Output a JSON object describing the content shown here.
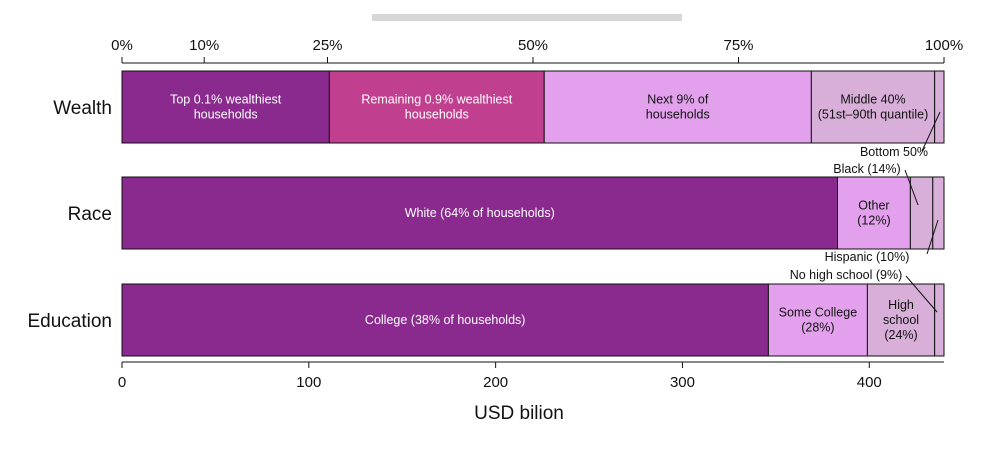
{
  "chart_data": {
    "type": "bar",
    "orientation": "horizontal",
    "stacked": true,
    "title": "",
    "xlabel": "USD bilion",
    "xlim": [
      0,
      440
    ],
    "bottom_ticks": [
      "0",
      "100",
      "200",
      "300",
      "400"
    ],
    "top_ticks": [
      "0%",
      "10%",
      "25%",
      "50%",
      "75%",
      "100%"
    ],
    "categories": [
      "Wealth",
      "Race",
      "Education"
    ],
    "rows": [
      {
        "category": "Wealth",
        "segments": [
          {
            "label": [
              "Top 0.1% wealthiest",
              "households"
            ],
            "value": 111,
            "color": "#8a298e",
            "text_color": "#ffffff"
          },
          {
            "label": [
              "Remaining 0.9% wealthiest",
              "households"
            ],
            "value": 115,
            "color": "#c0408f",
            "text_color": "#ffffff"
          },
          {
            "label": [
              "Next 9% of",
              "households"
            ],
            "value": 143,
            "color": "#e3a1ed",
            "text_color": "#111111"
          },
          {
            "label": [
              "Middle 40%",
              "(51st–90th quantile)"
            ],
            "value": 66,
            "color": "#d8afd8",
            "text_color": "#111111"
          },
          {
            "label": [
              "Bottom 50%"
            ],
            "value": 5,
            "color": "#d8afd8",
            "text_color": "#111111",
            "external": true
          }
        ]
      },
      {
        "category": "Race",
        "segments": [
          {
            "label": [
              "White (64% of households)"
            ],
            "value": 383,
            "color": "#8a298e",
            "text_color": "#ffffff"
          },
          {
            "label": [
              "Other",
              "(12%)"
            ],
            "value": 39,
            "color": "#e3a1ed",
            "text_color": "#111111"
          },
          {
            "label": [
              "Black (14%)"
            ],
            "value": 12,
            "color": "#d8afd8",
            "text_color": "#111111",
            "external": true
          },
          {
            "label": [
              "Hispanic (10%)"
            ],
            "value": 6,
            "color": "#d8afd8",
            "text_color": "#111111",
            "external": true
          }
        ]
      },
      {
        "category": "Education",
        "segments": [
          {
            "label": [
              "College (38% of households)"
            ],
            "value": 346,
            "color": "#8a298e",
            "text_color": "#ffffff"
          },
          {
            "label": [
              "Some College",
              "(28%)"
            ],
            "value": 53,
            "color": "#e3a1ed",
            "text_color": "#111111"
          },
          {
            "label": [
              "High",
              "school",
              "(24%)"
            ],
            "value": 36,
            "color": "#d8afd8",
            "text_color": "#111111"
          },
          {
            "label": [
              "No high school (9%)"
            ],
            "value": 5,
            "color": "#d8afd8",
            "text_color": "#111111",
            "external": true
          }
        ]
      }
    ]
  }
}
